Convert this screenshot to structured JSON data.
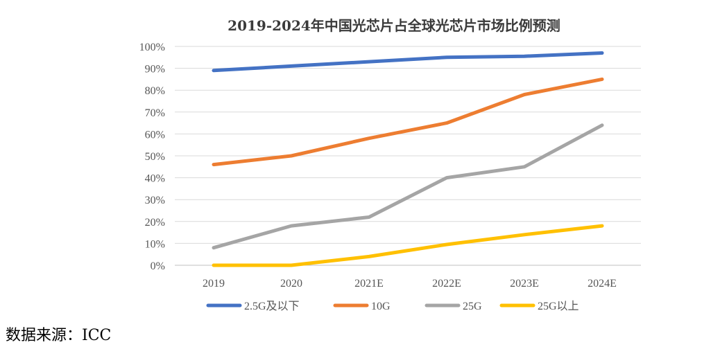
{
  "chart_data": {
    "type": "line",
    "title": "2019-2024年中国光芯片占全球光芯片市场比例预测",
    "categories": [
      "2019",
      "2020",
      "2021E",
      "2022E",
      "2023E",
      "2024E"
    ],
    "ylim": [
      0,
      100
    ],
    "yticks": [
      "0%",
      "10%",
      "20%",
      "30%",
      "40%",
      "50%",
      "60%",
      "70%",
      "80%",
      "90%",
      "100%"
    ],
    "grid": true,
    "legend_position": "bottom",
    "series": [
      {
        "name": "2.5G及以下",
        "color": "#4472C4",
        "values": [
          89,
          91,
          93,
          95,
          95.5,
          97
        ]
      },
      {
        "name": "10G",
        "color": "#ED7D31",
        "values": [
          46,
          50,
          58,
          65,
          78,
          85
        ]
      },
      {
        "name": "25G",
        "color": "#A5A5A5",
        "values": [
          8,
          18,
          22,
          40,
          45,
          64
        ]
      },
      {
        "name": "25G以上",
        "color": "#FFC000",
        "values": [
          0,
          0,
          4,
          9.5,
          14,
          18
        ]
      }
    ]
  },
  "source": "数据来源：ICC"
}
